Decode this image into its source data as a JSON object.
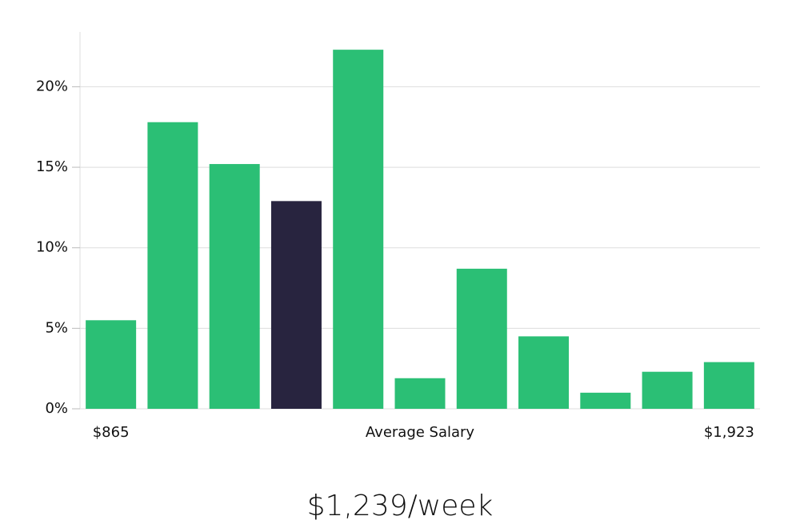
{
  "chart_data": {
    "type": "bar",
    "categories": [
      "$865",
      null,
      null,
      null,
      null,
      null,
      null,
      null,
      null,
      null,
      "$1,923"
    ],
    "values": [
      5.5,
      17.8,
      15.2,
      12.9,
      22.3,
      1.9,
      8.7,
      4.5,
      1.0,
      2.3,
      2.9
    ],
    "colors": [
      "#2bbf75",
      "#2bbf75",
      "#2bbf75",
      "#28243f",
      "#2bbf75",
      "#2bbf75",
      "#2bbf75",
      "#2bbf75",
      "#2bbf75",
      "#2bbf75",
      "#2bbf75"
    ],
    "x_label": "Average Salary",
    "annotation": "$1,239/week",
    "ylim": [
      0,
      23.4
    ],
    "yticks": [
      {
        "value": 0,
        "label": "0%"
      },
      {
        "value": 5,
        "label": "5%"
      },
      {
        "value": 10,
        "label": "10%"
      },
      {
        "value": 15,
        "label": "15%"
      },
      {
        "value": 20,
        "label": "20%"
      }
    ],
    "grid": true
  }
}
